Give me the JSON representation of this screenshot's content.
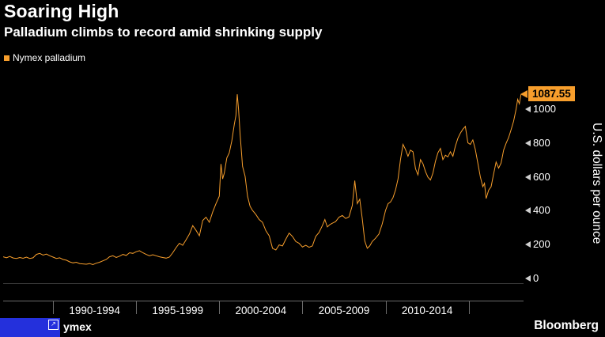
{
  "header": {
    "title": "Soaring High",
    "subtitle": "Palladium climbs to record amid shrinking supply"
  },
  "legend": {
    "label": "Nymex palladium"
  },
  "chart_data": {
    "type": "line",
    "title": "Soaring High",
    "subtitle": "Palladium climbs to record amid shrinking supply",
    "ylabel": "U.S. dollars per ounce",
    "xlabel": "",
    "grid": false,
    "legend_position": "top-left",
    "background": "#000000",
    "x_range": [
      1987,
      2018.3
    ],
    "ylim": [
      0,
      1200
    ],
    "y_ticks": [
      0,
      200,
      400,
      600,
      800,
      1000
    ],
    "x_ticks": [
      1990,
      1995,
      2000,
      2005,
      2010,
      2015
    ],
    "x_tick_labels": [
      "1990-1994",
      "1995-1999",
      "2000-2004",
      "2005-2009",
      "2010-2014"
    ],
    "last_value": 1087.55,
    "last_value_label": "1087.55",
    "series": [
      {
        "name": "Nymex palladium",
        "color": "#f79e2c",
        "points": [
          [
            1987.0,
            128
          ],
          [
            1987.2,
            122
          ],
          [
            1987.4,
            130
          ],
          [
            1987.6,
            121
          ],
          [
            1987.8,
            118
          ],
          [
            1988.0,
            124
          ],
          [
            1988.2,
            119
          ],
          [
            1988.4,
            126
          ],
          [
            1988.6,
            118
          ],
          [
            1988.8,
            122
          ],
          [
            1989.0,
            142
          ],
          [
            1989.2,
            148
          ],
          [
            1989.4,
            138
          ],
          [
            1989.6,
            144
          ],
          [
            1989.8,
            134
          ],
          [
            1990.0,
            126
          ],
          [
            1990.2,
            118
          ],
          [
            1990.4,
            122
          ],
          [
            1990.6,
            112
          ],
          [
            1990.8,
            108
          ],
          [
            1991.0,
            98
          ],
          [
            1991.2,
            92
          ],
          [
            1991.4,
            96
          ],
          [
            1991.6,
            88
          ],
          [
            1991.8,
            86
          ],
          [
            1992.0,
            84
          ],
          [
            1992.2,
            88
          ],
          [
            1992.4,
            82
          ],
          [
            1992.6,
            90
          ],
          [
            1992.8,
            96
          ],
          [
            1993.0,
            104
          ],
          [
            1993.2,
            112
          ],
          [
            1993.4,
            128
          ],
          [
            1993.6,
            134
          ],
          [
            1993.8,
            124
          ],
          [
            1994.0,
            132
          ],
          [
            1994.2,
            142
          ],
          [
            1994.4,
            136
          ],
          [
            1994.6,
            152
          ],
          [
            1994.8,
            148
          ],
          [
            1995.0,
            158
          ],
          [
            1995.2,
            164
          ],
          [
            1995.4,
            152
          ],
          [
            1995.6,
            142
          ],
          [
            1995.8,
            134
          ],
          [
            1996.0,
            140
          ],
          [
            1996.2,
            134
          ],
          [
            1996.4,
            128
          ],
          [
            1996.6,
            124
          ],
          [
            1996.8,
            120
          ],
          [
            1997.0,
            126
          ],
          [
            1997.2,
            152
          ],
          [
            1997.4,
            182
          ],
          [
            1997.6,
            208
          ],
          [
            1997.8,
            196
          ],
          [
            1998.0,
            228
          ],
          [
            1998.2,
            262
          ],
          [
            1998.4,
            312
          ],
          [
            1998.6,
            284
          ],
          [
            1998.8,
            252
          ],
          [
            1999.0,
            342
          ],
          [
            1999.2,
            362
          ],
          [
            1999.4,
            332
          ],
          [
            1999.6,
            392
          ],
          [
            1999.8,
            442
          ],
          [
            2000.0,
            486
          ],
          [
            2000.1,
            676
          ],
          [
            2000.2,
            588
          ],
          [
            2000.3,
            622
          ],
          [
            2000.45,
            712
          ],
          [
            2000.6,
            742
          ],
          [
            2000.75,
            812
          ],
          [
            2000.9,
            908
          ],
          [
            2001.0,
            962
          ],
          [
            2001.08,
            1088
          ],
          [
            2001.16,
            996
          ],
          [
            2001.25,
            852
          ],
          [
            2001.4,
            662
          ],
          [
            2001.55,
            604
          ],
          [
            2001.7,
            486
          ],
          [
            2001.85,
            426
          ],
          [
            2002.0,
            402
          ],
          [
            2002.2,
            378
          ],
          [
            2002.4,
            348
          ],
          [
            2002.6,
            332
          ],
          [
            2002.8,
            282
          ],
          [
            2003.0,
            252
          ],
          [
            2003.2,
            178
          ],
          [
            2003.4,
            168
          ],
          [
            2003.6,
            198
          ],
          [
            2003.8,
            192
          ],
          [
            2004.0,
            232
          ],
          [
            2004.2,
            268
          ],
          [
            2004.4,
            248
          ],
          [
            2004.6,
            218
          ],
          [
            2004.8,
            208
          ],
          [
            2005.0,
            186
          ],
          [
            2005.2,
            196
          ],
          [
            2005.4,
            184
          ],
          [
            2005.6,
            192
          ],
          [
            2005.8,
            248
          ],
          [
            2006.0,
            272
          ],
          [
            2006.2,
            312
          ],
          [
            2006.35,
            348
          ],
          [
            2006.5,
            304
          ],
          [
            2006.65,
            318
          ],
          [
            2006.8,
            326
          ],
          [
            2007.0,
            336
          ],
          [
            2007.2,
            362
          ],
          [
            2007.4,
            372
          ],
          [
            2007.6,
            354
          ],
          [
            2007.8,
            364
          ],
          [
            2008.0,
            432
          ],
          [
            2008.15,
            578
          ],
          [
            2008.3,
            442
          ],
          [
            2008.45,
            468
          ],
          [
            2008.6,
            352
          ],
          [
            2008.75,
            222
          ],
          [
            2008.9,
            178
          ],
          [
            2009.05,
            192
          ],
          [
            2009.2,
            218
          ],
          [
            2009.4,
            238
          ],
          [
            2009.6,
            262
          ],
          [
            2009.8,
            322
          ],
          [
            2010.0,
            402
          ],
          [
            2010.15,
            442
          ],
          [
            2010.3,
            452
          ],
          [
            2010.45,
            478
          ],
          [
            2010.6,
            522
          ],
          [
            2010.75,
            588
          ],
          [
            2010.9,
            702
          ],
          [
            2011.05,
            792
          ],
          [
            2011.2,
            762
          ],
          [
            2011.35,
            722
          ],
          [
            2011.5,
            758
          ],
          [
            2011.65,
            748
          ],
          [
            2011.8,
            648
          ],
          [
            2011.95,
            612
          ],
          [
            2012.1,
            702
          ],
          [
            2012.25,
            678
          ],
          [
            2012.4,
            632
          ],
          [
            2012.55,
            598
          ],
          [
            2012.7,
            582
          ],
          [
            2012.85,
            622
          ],
          [
            2013.0,
            692
          ],
          [
            2013.15,
            742
          ],
          [
            2013.3,
            768
          ],
          [
            2013.45,
            702
          ],
          [
            2013.6,
            728
          ],
          [
            2013.75,
            718
          ],
          [
            2013.9,
            748
          ],
          [
            2014.05,
            722
          ],
          [
            2014.2,
            782
          ],
          [
            2014.35,
            828
          ],
          [
            2014.5,
            858
          ],
          [
            2014.65,
            882
          ],
          [
            2014.8,
            898
          ],
          [
            2014.95,
            802
          ],
          [
            2015.1,
            792
          ],
          [
            2015.25,
            818
          ],
          [
            2015.4,
            762
          ],
          [
            2015.55,
            682
          ],
          [
            2015.7,
            602
          ],
          [
            2015.85,
            542
          ],
          [
            2015.95,
            562
          ],
          [
            2016.05,
            472
          ],
          [
            2016.2,
            522
          ],
          [
            2016.35,
            542
          ],
          [
            2016.5,
            618
          ],
          [
            2016.65,
            688
          ],
          [
            2016.8,
            652
          ],
          [
            2016.95,
            682
          ],
          [
            2017.1,
            758
          ],
          [
            2017.25,
            798
          ],
          [
            2017.4,
            832
          ],
          [
            2017.55,
            878
          ],
          [
            2017.7,
            928
          ],
          [
            2017.85,
            998
          ],
          [
            2017.95,
            1058
          ],
          [
            2018.05,
            1032
          ],
          [
            2018.15,
            1087.55
          ]
        ]
      }
    ]
  },
  "footer": {
    "source_text": "ymex",
    "brand": "Bloomberg"
  },
  "icons": {
    "expand": "↗"
  },
  "colors": {
    "accent": "#f79e2c",
    "background": "#000000",
    "text": "#ffffff",
    "axis": "#6a6a6a",
    "badge_bg": "#f79e2c",
    "badge_text": "#000000",
    "selection_blue": "#2430dc"
  }
}
